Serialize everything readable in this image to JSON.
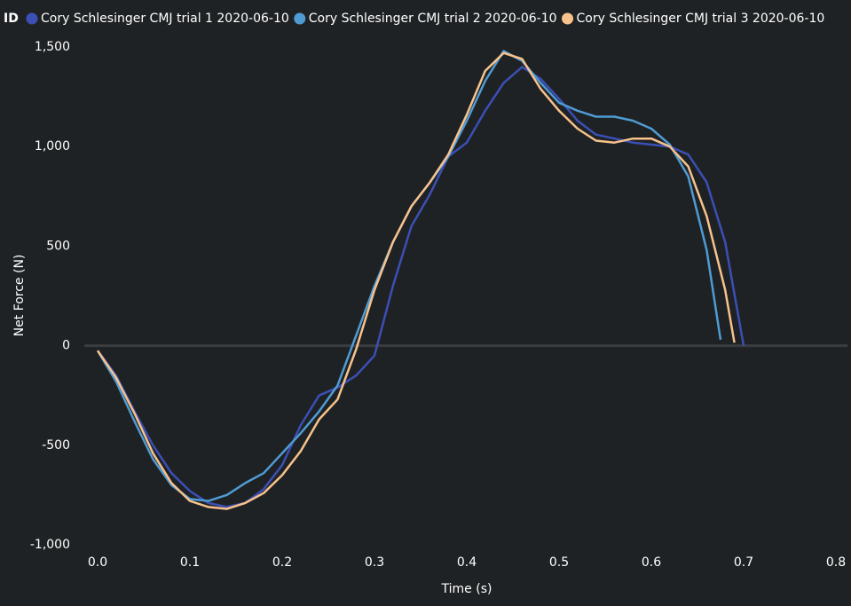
{
  "chart_data": {
    "type": "line",
    "legend_title": "ID",
    "xlabel": "Time (s)",
    "ylabel": "Net Force (N)",
    "xlim": [
      0,
      0.8
    ],
    "ylim": [
      -1000,
      1500
    ],
    "xticks": [
      {
        "value": 0,
        "label": "0.0"
      },
      0.1,
      0.2,
      0.3,
      0.4,
      0.5,
      0.6,
      0.7,
      0.8
    ],
    "yticks": [
      {
        "value": -1000,
        "label": "-1,000"
      },
      -500,
      0,
      500,
      {
        "value": 1000,
        "label": "1,000"
      },
      {
        "value": 1500,
        "label": "1,500"
      }
    ],
    "zero_line": true,
    "series": [
      {
        "name": "Cory Schlesinger CMJ trial 1 2020-06-10",
        "color": "#3b4fb5",
        "x": [
          0,
          0.02,
          0.04,
          0.06,
          0.08,
          0.1,
          0.12,
          0.14,
          0.16,
          0.18,
          0.2,
          0.22,
          0.24,
          0.26,
          0.28,
          0.3,
          0.32,
          0.34,
          0.36,
          0.38,
          0.4,
          0.42,
          0.44,
          0.46,
          0.48,
          0.5,
          0.52,
          0.54,
          0.56,
          0.58,
          0.6,
          0.62,
          0.64,
          0.66,
          0.68,
          0.7
        ],
        "values": [
          -25,
          -150,
          -330,
          -500,
          -640,
          -730,
          -790,
          -810,
          -790,
          -720,
          -600,
          -400,
          -250,
          -210,
          -150,
          -50,
          300,
          600,
          760,
          950,
          1020,
          1180,
          1320,
          1400,
          1340,
          1240,
          1130,
          1060,
          1040,
          1020,
          1010,
          1000,
          960,
          820,
          520,
          0
        ]
      },
      {
        "name": "Cory Schlesinger CMJ trial 2 2020-06-10",
        "color": "#4f9bd3",
        "x": [
          0,
          0.02,
          0.04,
          0.06,
          0.08,
          0.1,
          0.12,
          0.14,
          0.16,
          0.18,
          0.2,
          0.22,
          0.24,
          0.26,
          0.28,
          0.3,
          0.32,
          0.34,
          0.36,
          0.38,
          0.4,
          0.42,
          0.44,
          0.46,
          0.48,
          0.5,
          0.52,
          0.54,
          0.56,
          0.58,
          0.6,
          0.62,
          0.64,
          0.66,
          0.675
        ],
        "values": [
          -25,
          -180,
          -380,
          -570,
          -700,
          -770,
          -780,
          -750,
          -690,
          -640,
          -540,
          -440,
          -330,
          -200,
          50,
          300,
          520,
          700,
          820,
          950,
          1130,
          1330,
          1480,
          1430,
          1320,
          1220,
          1180,
          1150,
          1150,
          1130,
          1090,
          1010,
          850,
          480,
          30
        ]
      },
      {
        "name": "Cory Schlesinger CMJ trial 3 2020-06-10",
        "color": "#f7c28c",
        "x": [
          0,
          0.02,
          0.04,
          0.06,
          0.08,
          0.1,
          0.12,
          0.14,
          0.16,
          0.18,
          0.2,
          0.22,
          0.24,
          0.26,
          0.28,
          0.3,
          0.32,
          0.34,
          0.36,
          0.38,
          0.4,
          0.42,
          0.44,
          0.46,
          0.48,
          0.5,
          0.52,
          0.54,
          0.56,
          0.58,
          0.6,
          0.62,
          0.64,
          0.66,
          0.68,
          0.69
        ],
        "values": [
          -25,
          -160,
          -340,
          -540,
          -690,
          -780,
          -810,
          -820,
          -790,
          -740,
          -650,
          -530,
          -370,
          -270,
          -20,
          280,
          520,
          700,
          820,
          960,
          1160,
          1380,
          1470,
          1440,
          1290,
          1180,
          1090,
          1030,
          1020,
          1040,
          1040,
          1000,
          900,
          650,
          280,
          15
        ]
      }
    ]
  }
}
